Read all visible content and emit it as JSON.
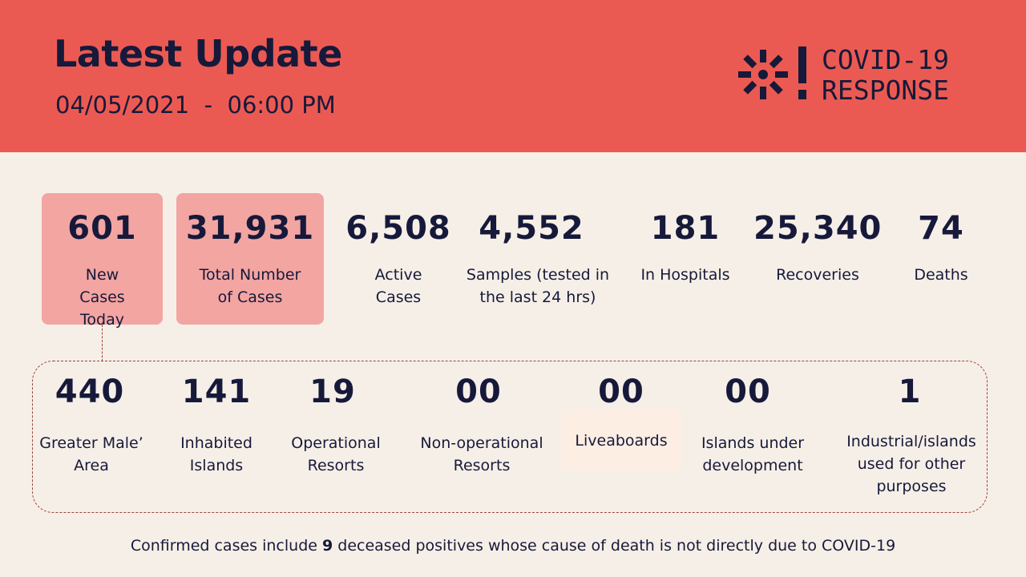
{
  "header": {
    "title": "Latest Update",
    "date": "04/05/2021",
    "separator": "-",
    "time": "06:00 PM",
    "logo_line1": "COVID-19",
    "logo_line2": "RESPONSE",
    "logo_icon": "asterisk-exclamation-icon",
    "bg_color": "#EB5A52"
  },
  "top_stats": [
    {
      "value": "601",
      "label": "New Cases Today",
      "highlighted": true
    },
    {
      "value": "31,931",
      "label": "Total Number of Cases",
      "highlighted": true
    },
    {
      "value": "6,508",
      "label": "Active Cases",
      "highlighted": false
    },
    {
      "value": "4,552",
      "label": "Samples (tested in the last 24 hrs)",
      "highlighted": false
    },
    {
      "value": "181",
      "label": "In Hospitals",
      "highlighted": false
    },
    {
      "value": "25,340",
      "label": "Recoveries",
      "highlighted": false
    },
    {
      "value": "74",
      "label": "Deaths",
      "highlighted": false
    }
  ],
  "breakdown": [
    {
      "value": "440",
      "label": "Greater Male’ Area"
    },
    {
      "value": "141",
      "label": "Inhabited Islands"
    },
    {
      "value": "19",
      "label": "Operational Resorts"
    },
    {
      "value": "00",
      "label": "Non-operational Resorts"
    },
    {
      "value": "00",
      "label": "Liveaboards"
    },
    {
      "value": "00",
      "label": "Islands under development"
    },
    {
      "value": "1",
      "label": "Industrial/islands used for other purposes"
    }
  ],
  "footnote": {
    "before": "Confirmed cases include ",
    "count": "9",
    "after": " deceased positives whose cause of death is not directly due to COVID-19"
  },
  "colors": {
    "highlight_box": "#F3A5A2",
    "text": "#16193A",
    "background": "#F6EFE7",
    "dashed_border": "#A0413C"
  }
}
